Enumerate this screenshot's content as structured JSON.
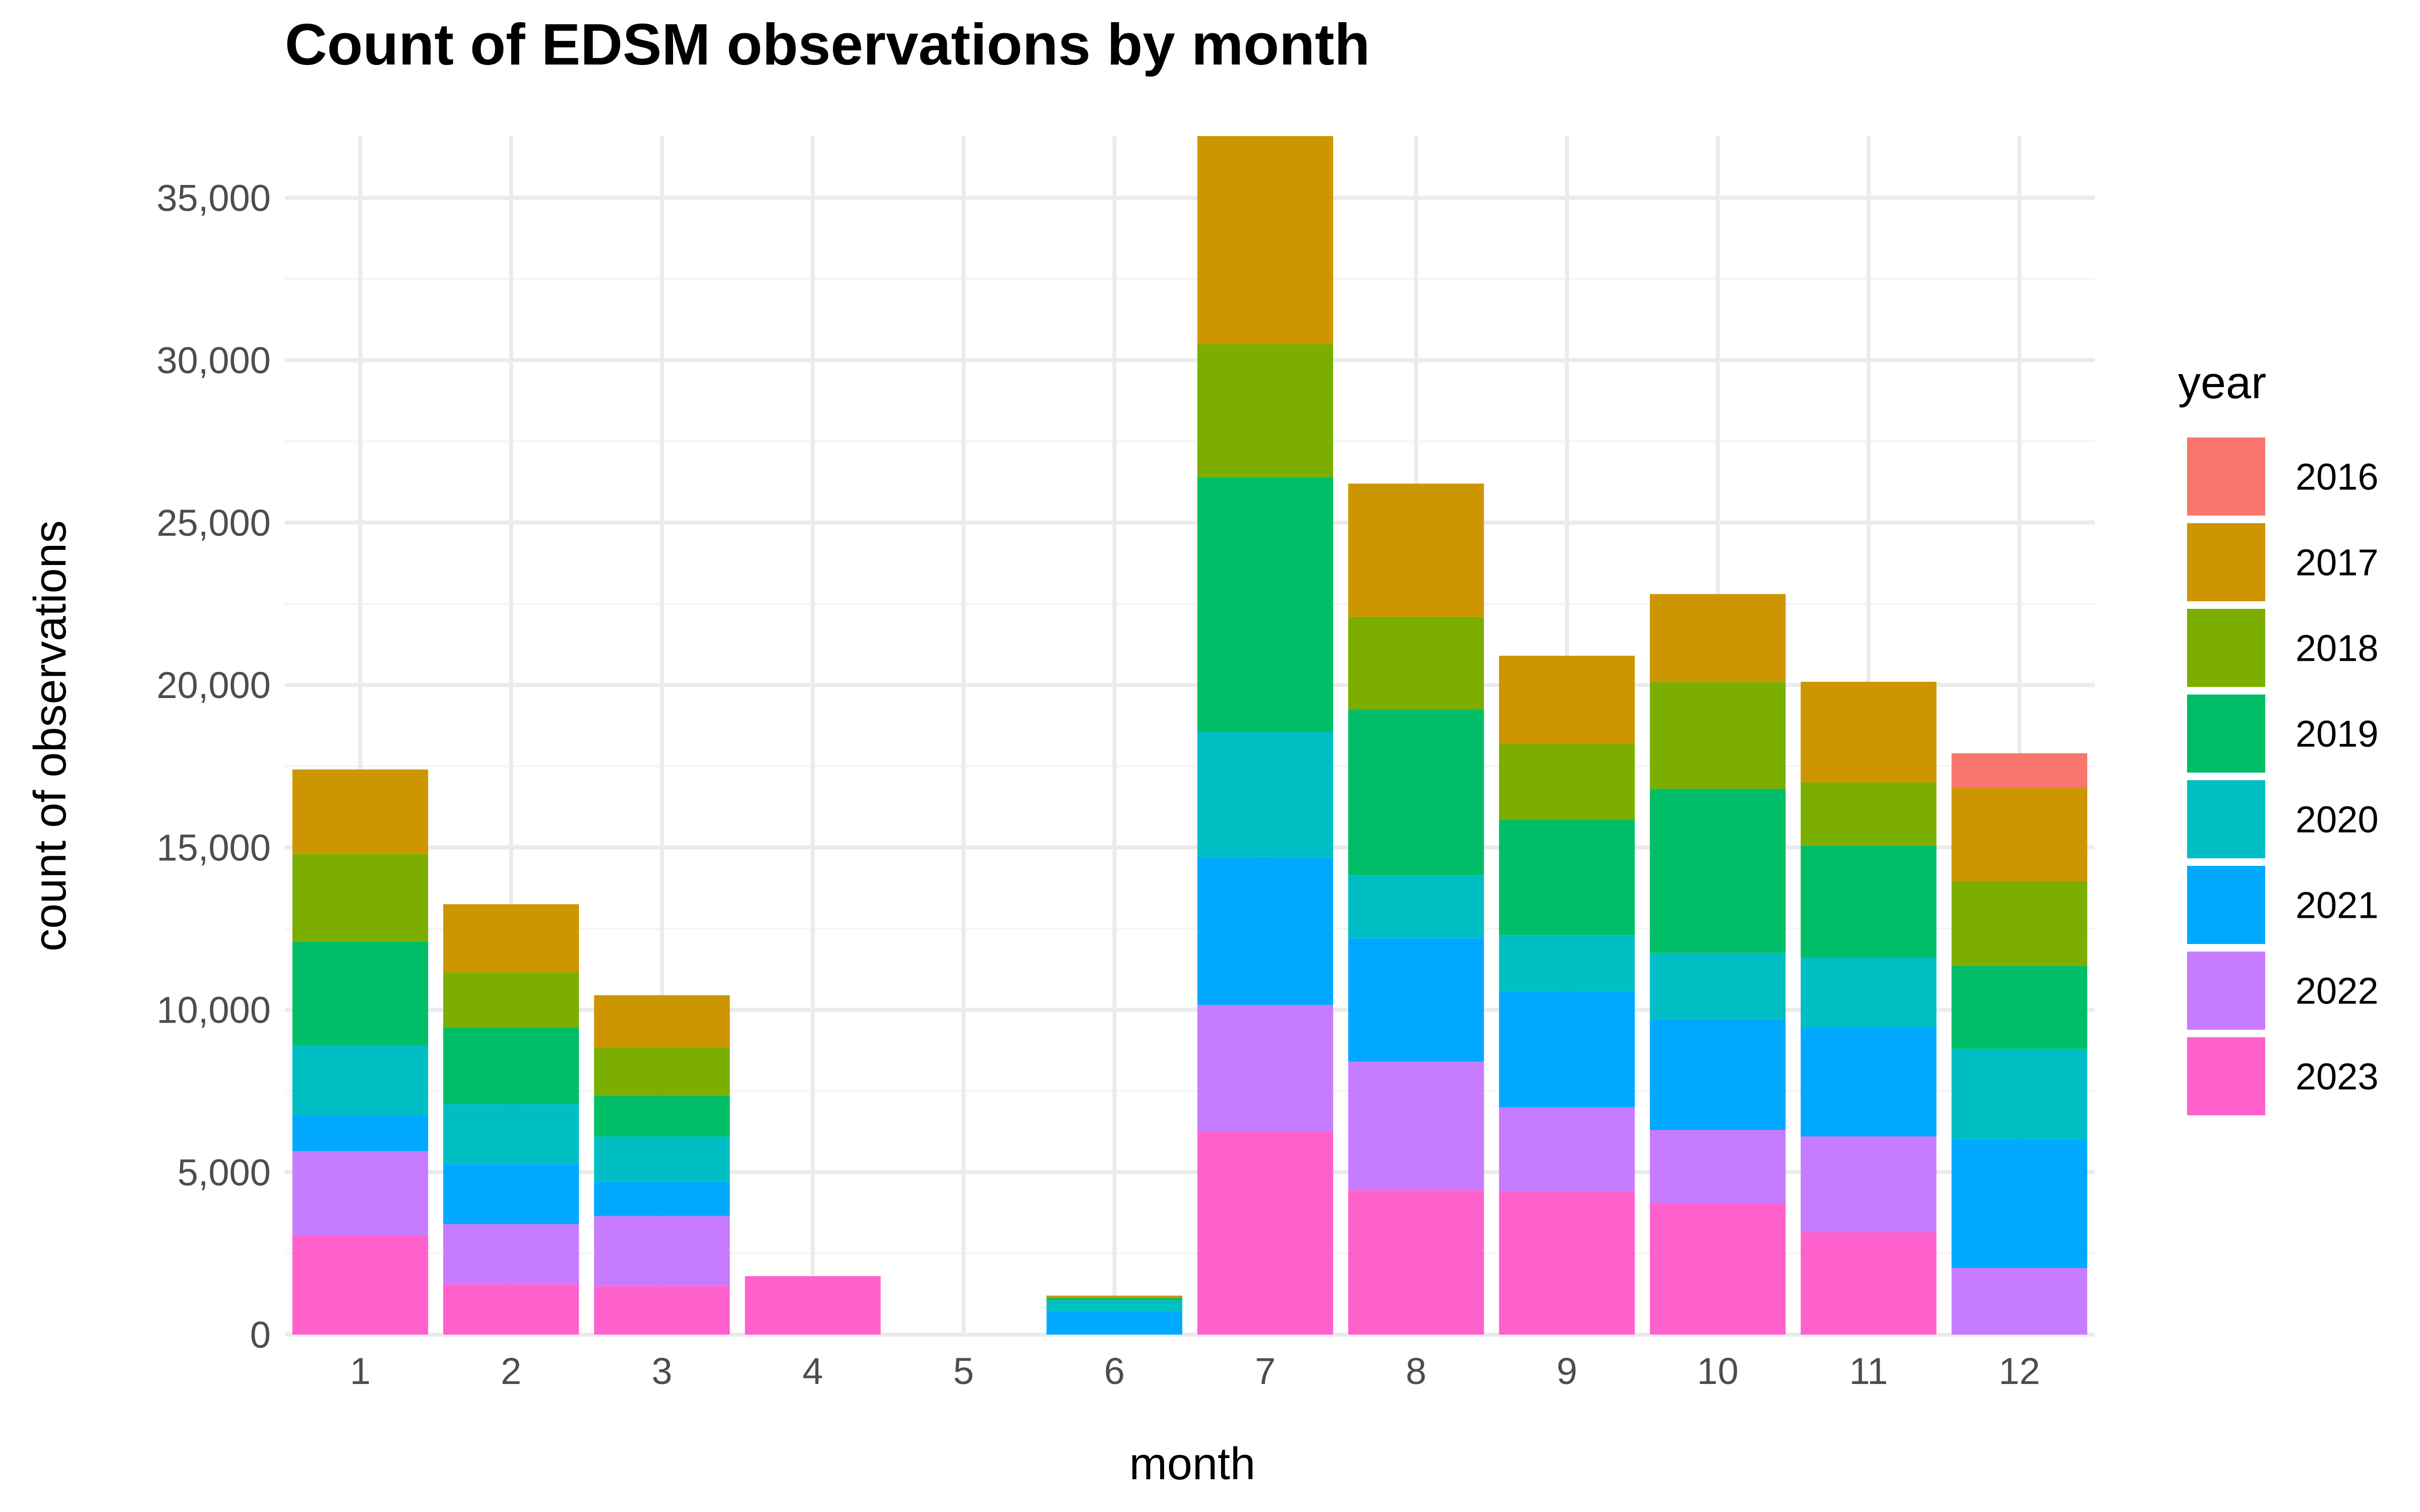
{
  "chart_data": {
    "type": "bar",
    "stacked": true,
    "title": "Count of EDSM observations by month",
    "xlabel": "month",
    "ylabel": "count of observations",
    "ylim": [
      0,
      36900
    ],
    "yticks": [
      0,
      5000,
      10000,
      15000,
      20000,
      25000,
      30000,
      35000
    ],
    "ytick_labels": [
      "0",
      "5,000",
      "10,000",
      "15,000",
      "20,000",
      "25,000",
      "30,000",
      "35,000"
    ],
    "grid": true,
    "categories": [
      "1",
      "2",
      "3",
      "4",
      "5",
      "6",
      "7",
      "8",
      "9",
      "10",
      "11",
      "12"
    ],
    "legend": {
      "title": "year",
      "placement": "right"
    },
    "series": [
      {
        "name": "2023",
        "color": "#FF61CC",
        "values": [
          3050,
          1550,
          1500,
          1800,
          0,
          0,
          6250,
          4450,
          4400,
          4050,
          3150,
          0
        ]
      },
      {
        "name": "2022",
        "color": "#C77CFF",
        "values": [
          2600,
          1850,
          2150,
          0,
          0,
          0,
          3900,
          3950,
          2600,
          2250,
          2950,
          2050
        ]
      },
      {
        "name": "2021",
        "color": "#00A9FF",
        "values": [
          1100,
          1850,
          1050,
          0,
          0,
          700,
          4550,
          3800,
          3550,
          3400,
          3350,
          3950
        ]
      },
      {
        "name": "2020",
        "color": "#00BFC4",
        "values": [
          2150,
          1850,
          1400,
          0,
          0,
          350,
          3850,
          1950,
          1750,
          2050,
          2150,
          2800
        ]
      },
      {
        "name": "2019",
        "color": "#00BE67",
        "values": [
          3200,
          2350,
          1250,
          0,
          0,
          80,
          7850,
          5100,
          3550,
          5050,
          3450,
          2550
        ]
      },
      {
        "name": "2018",
        "color": "#7CAE00",
        "values": [
          2700,
          1700,
          1500,
          0,
          0,
          0,
          4100,
          2850,
          2350,
          3300,
          1950,
          2600
        ]
      },
      {
        "name": "2017",
        "color": "#CD9600",
        "values": [
          2600,
          2100,
          1600,
          0,
          0,
          70,
          6400,
          4100,
          2700,
          2700,
          3100,
          2900
        ]
      },
      {
        "name": "2016",
        "color": "#F8766D",
        "values": [
          0,
          0,
          0,
          0,
          0,
          0,
          0,
          0,
          0,
          0,
          0,
          1050
        ]
      }
    ],
    "legend_order": [
      "2016",
      "2017",
      "2018",
      "2019",
      "2020",
      "2021",
      "2022",
      "2023"
    ]
  }
}
